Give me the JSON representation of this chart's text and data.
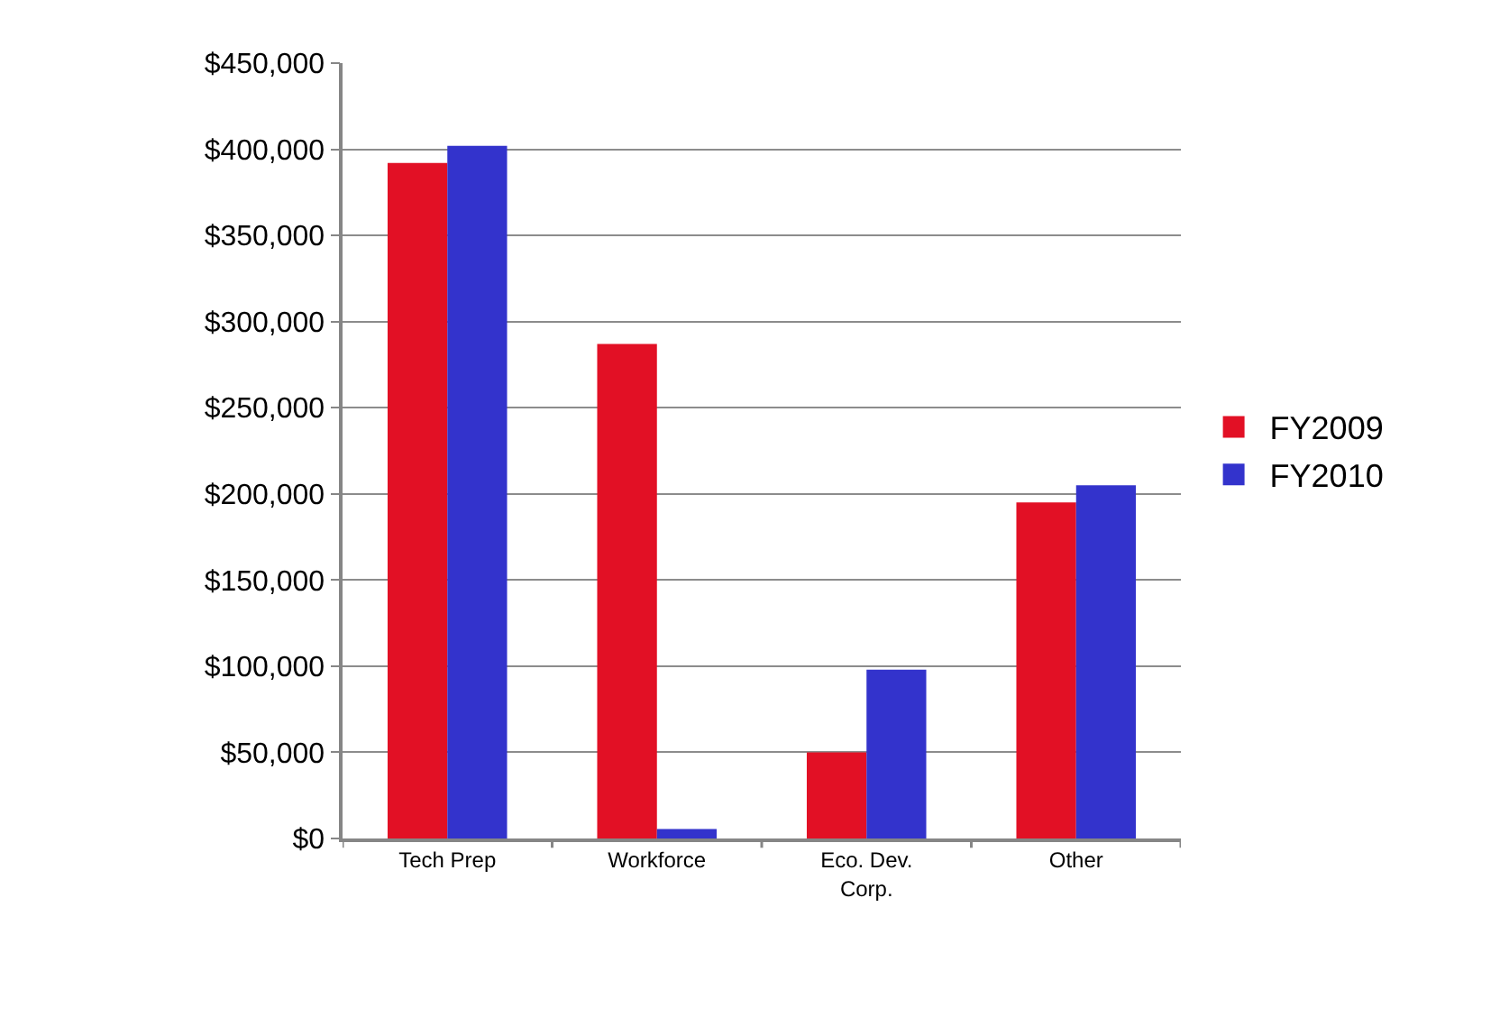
{
  "chart_data": {
    "type": "bar",
    "categories": [
      "Tech Prep",
      "Workforce",
      "Eco. Dev. Corp.",
      "Other"
    ],
    "series": [
      {
        "name": "FY2009",
        "color": "#e21025",
        "values": [
          392000,
          287000,
          50000,
          195000
        ]
      },
      {
        "name": "FY2010",
        "color": "#3333cc",
        "values": [
          402000,
          5500,
          98000,
          205000
        ]
      }
    ],
    "ylim": [
      0,
      450000
    ],
    "yticks": [
      {
        "value": 0,
        "label": "$0"
      },
      {
        "value": 50000,
        "label": "$50,000"
      },
      {
        "value": 100000,
        "label": "$100,000"
      },
      {
        "value": 150000,
        "label": "$150,000"
      },
      {
        "value": 200000,
        "label": "$200,000"
      },
      {
        "value": 250000,
        "label": "$250,000"
      },
      {
        "value": 300000,
        "label": "$300,000"
      },
      {
        "value": 350000,
        "label": "$350,000"
      },
      {
        "value": 400000,
        "label": "$400,000"
      },
      {
        "value": 450000,
        "label": "$450,000"
      }
    ],
    "grid": "y",
    "legend": "right"
  }
}
